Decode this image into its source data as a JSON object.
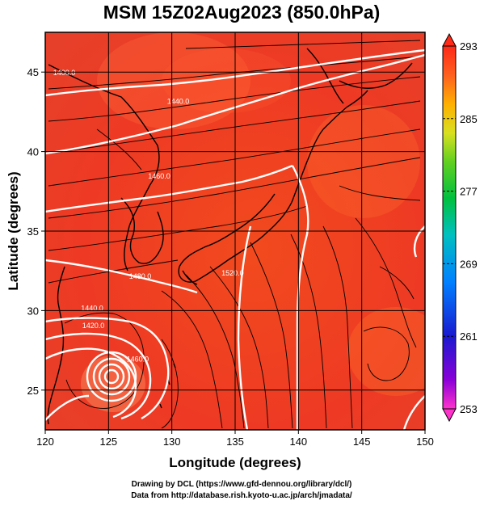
{
  "chart_data": {
    "type": "heatmap",
    "title": "MSM 15Z02Aug2023 (850.0hPa)",
    "xlabel": "Longitude (degrees)",
    "ylabel": "Latitude  (degrees)",
    "xlim": [
      120,
      150
    ],
    "ylim": [
      22.5,
      47.5
    ],
    "x_ticks": [
      120,
      125,
      130,
      135,
      140,
      145,
      150
    ],
    "y_ticks": [
      25,
      30,
      35,
      40,
      45
    ],
    "colorbar": {
      "min": 253,
      "max": 293,
      "ticks": [
        293,
        285,
        277,
        269,
        261,
        253
      ]
    },
    "field_color": "#f03a22",
    "contour_color": "#ffffff",
    "contour_labels": [
      {
        "text": "1400.0",
        "lon": 121.5,
        "lat": 44.8
      },
      {
        "text": "1440.0",
        "lon": 130.5,
        "lat": 43.0
      },
      {
        "text": "1460.0",
        "lon": 129.0,
        "lat": 38.3
      },
      {
        "text": "1480.0",
        "lon": 127.5,
        "lat": 32.0
      },
      {
        "text": "1520.0",
        "lon": 134.8,
        "lat": 32.2
      },
      {
        "text": "1440.0",
        "lon": 123.7,
        "lat": 30.0
      },
      {
        "text": "1420.0",
        "lon": 123.8,
        "lat": 28.9
      },
      {
        "text": "1460.0",
        "lon": 127.3,
        "lat": 26.8
      }
    ],
    "grid": true
  },
  "footer": {
    "line1": "Drawing by DCL (https://www.gfd-dennou.org/library/dcl/)",
    "line2": "Data from http://database.rish.kyoto-u.ac.jp/arch/jmadata/"
  }
}
